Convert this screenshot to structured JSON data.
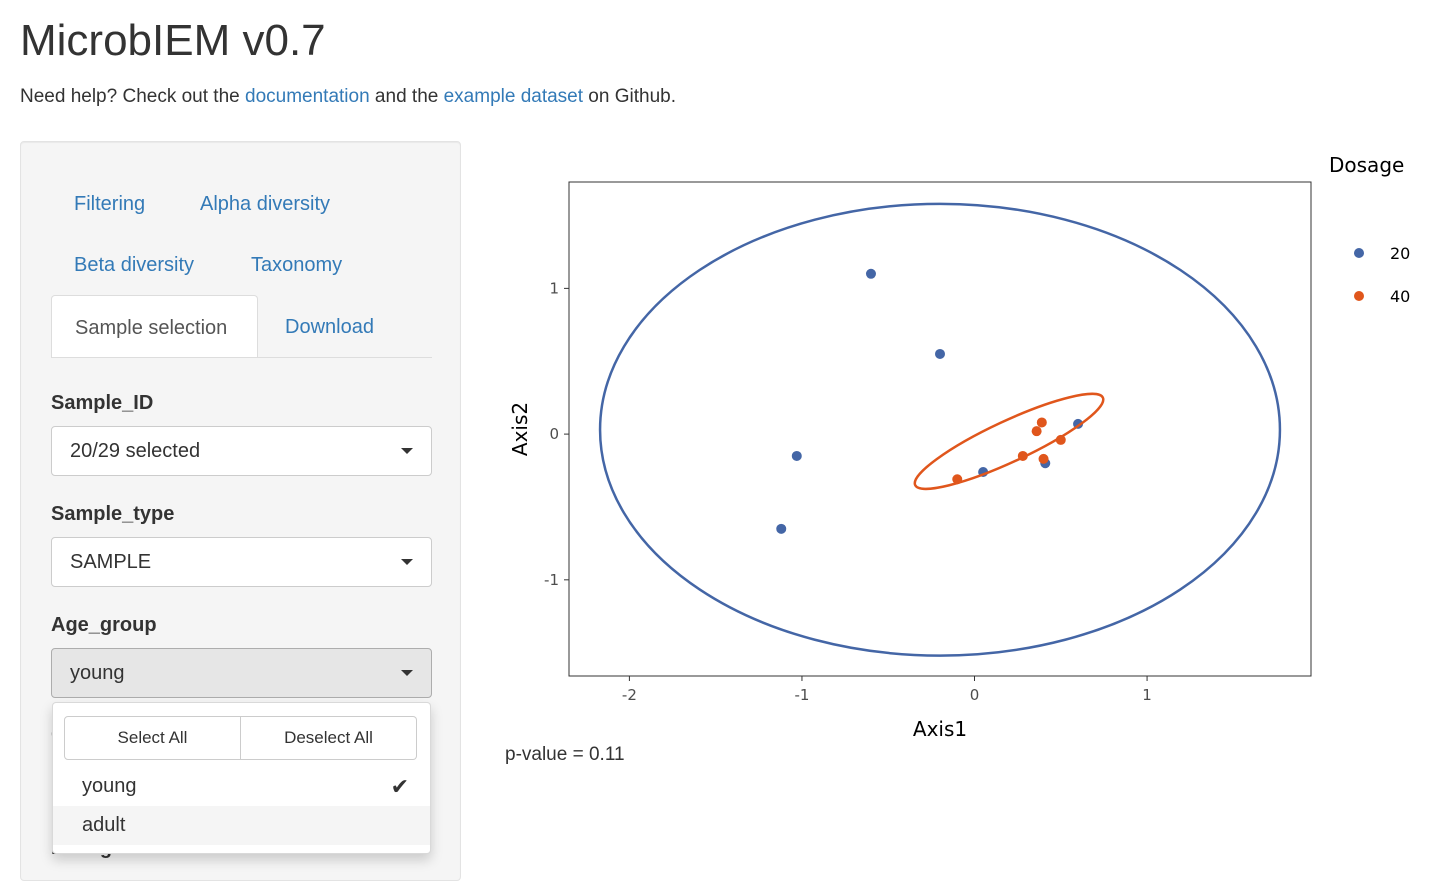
{
  "app": {
    "title": "MicrobIEM v0.7"
  },
  "help": {
    "prefix": "Need help? Check out the ",
    "doc_link": "documentation",
    "middle": " and the ",
    "example_link": "example dataset",
    "suffix": " on Github."
  },
  "tabs": {
    "filtering": "Filtering",
    "alpha": "Alpha diversity",
    "beta": "Beta diversity",
    "taxonomy": "Taxonomy",
    "sample_selection": "Sample selection",
    "download": "Download"
  },
  "fields": {
    "sample_id": {
      "label": "Sample_ID",
      "value": "20/29 selected"
    },
    "sample_type": {
      "label": "Sample_type",
      "value": "SAMPLE"
    },
    "age_group": {
      "label": "Age_group",
      "value": "young"
    },
    "hidden_label_1": "C",
    "hidden_label_2": "Dosage"
  },
  "dropdown": {
    "select_all": "Select All",
    "deselect_all": "Deselect All",
    "options": [
      {
        "label": "young",
        "selected": true
      },
      {
        "label": "adult",
        "selected": false
      }
    ]
  },
  "pvalue_text": "p-value = 0.11",
  "colors": {
    "series_20": "#4466a6",
    "series_40": "#e0561c",
    "link": "#337ab7"
  },
  "chart_data": {
    "type": "scatter",
    "xlabel": "Axis1",
    "ylabel": "Axis2",
    "xlim": [
      -2.35,
      1.95
    ],
    "ylim": [
      -1.66,
      1.73
    ],
    "xticks": [
      -2,
      -1,
      0,
      1
    ],
    "yticks": [
      -1,
      0,
      1
    ],
    "legend_title": "Dosage",
    "legend_position": "right",
    "grid": false,
    "series": [
      {
        "name": "20",
        "color": "#4466a6",
        "points": [
          [
            -0.6,
            1.1
          ],
          [
            -0.2,
            0.55
          ],
          [
            -1.03,
            -0.15
          ],
          [
            -1.12,
            -0.65
          ],
          [
            0.05,
            -0.26
          ],
          [
            0.41,
            -0.2
          ],
          [
            0.6,
            0.07
          ]
        ],
        "ellipse": {
          "cx": -0.2,
          "cy": 0.03,
          "rx": 1.97,
          "ry": 1.55,
          "angle": 0
        }
      },
      {
        "name": "40",
        "color": "#e0561c",
        "points": [
          [
            -0.1,
            -0.31
          ],
          [
            0.28,
            -0.15
          ],
          [
            0.36,
            0.02
          ],
          [
            0.39,
            0.08
          ],
          [
            0.4,
            -0.17
          ],
          [
            0.5,
            -0.04
          ]
        ],
        "ellipse": {
          "cx": 0.2,
          "cy": -0.05,
          "rx": 0.6,
          "ry": 0.14,
          "angle": 25
        }
      }
    ]
  }
}
